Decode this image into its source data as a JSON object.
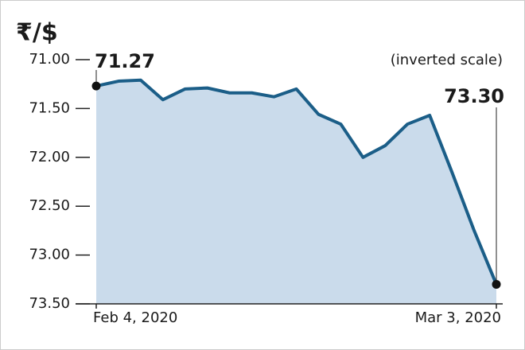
{
  "chart_data": {
    "type": "area",
    "title": "₹/$",
    "annotation": "(inverted scale)",
    "categories": [
      "Feb 4, 2020",
      null,
      null,
      null,
      null,
      null,
      null,
      null,
      null,
      null,
      null,
      null,
      null,
      null,
      null,
      null,
      null,
      null,
      "Mar 3, 2020"
    ],
    "values": [
      71.27,
      71.22,
      71.21,
      71.41,
      71.3,
      71.29,
      71.34,
      71.34,
      71.38,
      71.3,
      71.56,
      71.66,
      72.0,
      71.88,
      71.66,
      71.57,
      72.15,
      72.75,
      73.3
    ],
    "value_labels": [
      "71.27",
      null,
      null,
      null,
      null,
      null,
      null,
      null,
      null,
      null,
      null,
      null,
      null,
      null,
      null,
      null,
      null,
      null,
      "73.30"
    ],
    "color": "#1b5e88",
    "area_color": "#cadbeb",
    "inverted": true,
    "ylim": [
      71,
      73.5
    ],
    "yticks": [
      {
        "value": 71,
        "label": "71.00"
      },
      {
        "value": 71.5,
        "label": "71.50"
      },
      {
        "value": 72,
        "label": "72.00"
      },
      {
        "value": 72.5,
        "label": "72.50"
      },
      {
        "value": 73,
        "label": "73.00"
      },
      {
        "value": 73.5,
        "label": "73.50"
      }
    ]
  }
}
